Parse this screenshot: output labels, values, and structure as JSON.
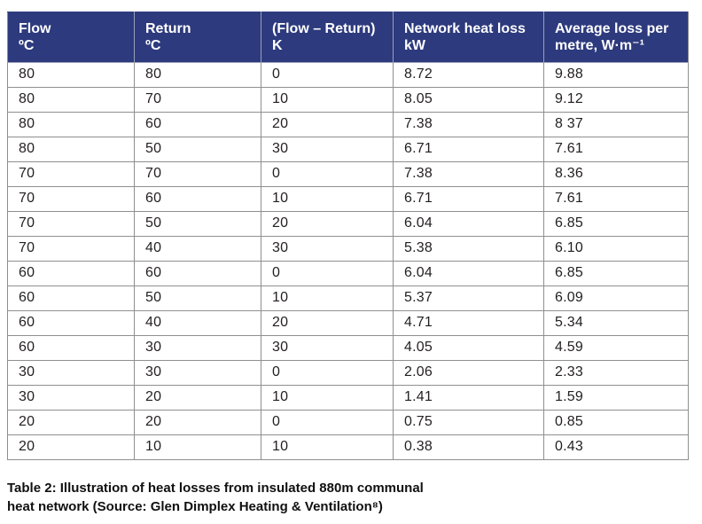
{
  "colors": {
    "header_bg": "#2d3a7d",
    "header_text": "#ffffff",
    "border": "#8f8f8f",
    "cell_text": "#231f20",
    "caption_text": "#101010"
  },
  "table": {
    "headers": [
      {
        "line1": "Flow",
        "line2": "ºC"
      },
      {
        "line1": "Return",
        "line2": "ºC"
      },
      {
        "line1": "(Flow – Return)",
        "line2": "K"
      },
      {
        "line1": "Network heat loss",
        "line2": "kW"
      },
      {
        "line1": "Average loss per",
        "line2": "metre, W·m⁻¹"
      }
    ],
    "rows": [
      [
        "80",
        "80",
        "0",
        "8.72",
        "9.88"
      ],
      [
        "80",
        "70",
        "10",
        "8.05",
        "9.12"
      ],
      [
        "80",
        "60",
        "20",
        "7.38",
        "8 37"
      ],
      [
        "80",
        "50",
        "30",
        "6.71",
        "7.61"
      ],
      [
        "70",
        "70",
        "0",
        "7.38",
        "8.36"
      ],
      [
        "70",
        "60",
        "10",
        "6.71",
        "7.61"
      ],
      [
        "70",
        "50",
        "20",
        "6.04",
        "6.85"
      ],
      [
        "70",
        "40",
        "30",
        "5.38",
        "6.10"
      ],
      [
        "60",
        "60",
        "0",
        "6.04",
        "6.85"
      ],
      [
        "60",
        "50",
        "10",
        "5.37",
        "6.09"
      ],
      [
        "60",
        "40",
        "20",
        "4.71",
        "5.34"
      ],
      [
        "60",
        "30",
        "30",
        "4.05",
        "4.59"
      ],
      [
        "30",
        "30",
        "0",
        "2.06",
        "2.33"
      ],
      [
        "30",
        "20",
        "10",
        "1.41",
        "1.59"
      ],
      [
        "20",
        "20",
        "0",
        "0.75",
        "0.85"
      ],
      [
        "20",
        "10",
        "10",
        "0.38",
        "0.43"
      ]
    ]
  },
  "caption": "Table 2: Illustration of heat losses from insulated 880m communal heat network (Source: Glen Dimplex Heating & Ventilation⁸)"
}
